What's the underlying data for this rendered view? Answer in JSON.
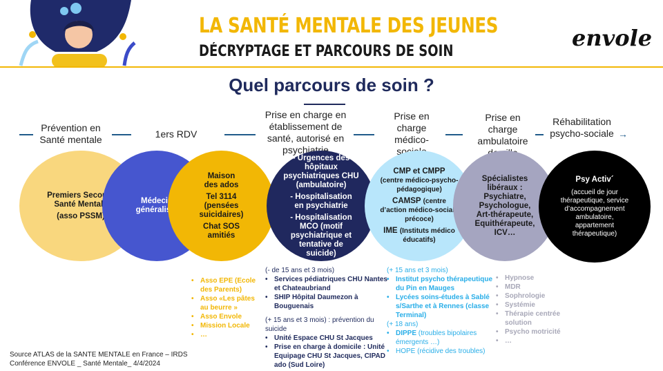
{
  "header": {
    "title": "LA SANTÉ MENTALE DES JEUNES",
    "subtitle": "DÉCRYPTAGE ET PARCOURS DE SOIN",
    "logo_text": "envole"
  },
  "heading": "Quel parcours de soin ?",
  "steps": [
    "Prévention en Santé mentale",
    "1ers RDV",
    "Prise en charge en établissement de santé, autorisé en psychiatrie",
    "Prise en charge médico-sociale",
    "Prise en charge ambulatoire de ville",
    "Réhabilitation psycho-sociale"
  ],
  "circles": {
    "c1": [
      "Premiers Secours Santé Mentale",
      "(asso PSSM)"
    ],
    "c2": [
      "Médecin généraliste"
    ],
    "c3": [
      "Maison des ados",
      "Tel 3114 (pensées suicidaires)",
      "Chat SOS amitiés"
    ],
    "c4": [
      "- Urgences des hôpitaux psychiatriques CHU (ambulatoire)",
      "- Hospitalisation en psychiatrie",
      "- Hospitalisation MCO  (motif psychiatrique et tentative de suicide)"
    ],
    "c5": {
      "a": "CMP et CMPP",
      "a2": "(centre médico-psycho-pédagogique)",
      "b": "CAMSP",
      "b2": "(centre d’action médico-sociale précoce)",
      "c": "IME",
      "c2": "(Instituts médico éducatifs)"
    },
    "c6": [
      "Spécialistes libéraux : Psychiatre, Psychologue, Art-thérapeute, Equithérapeute, ICV…"
    ],
    "c7": {
      "title": "Psy Activ´",
      "desc": "(accueil de jour thérapeutique, service d’accompagnement ambulatoire, appartement thérapeutique)"
    }
  },
  "lists": {
    "prevention": [
      "Asso EPE (Ecole des Parents)",
      "Asso «Les pâtes au beurre »",
      "Asso Envole",
      "Mission Locale",
      "…"
    ],
    "etab": {
      "h1": "(- de 15 ans et 3 mois)",
      "i1": [
        "Services pédiatriques CHU Nantes et Chateaubriand",
        "SHIP Hôpital Daumezon à Bouguenais"
      ],
      "h2": "(+ 15 ans et 3 mois) : prévention du suicide",
      "i2": [
        "Unité Espace CHU St Jacques",
        "Prise en charge à domicile : Unité Equipage CHU St Jacques, CIPAD ado (Sud Loire)"
      ]
    },
    "medsoc": {
      "h1": "(+ 15 ans et 3 mois)",
      "i1": [
        "Institut psycho thérapeutique du Pin en Mauges",
        "Lycées soins-études à Sablé s/Sarthe et à Rennes (classe Terminal)"
      ],
      "h2": "(+ 18 ans)",
      "i2a": "DIPPE",
      "i2a2": " (troubles bipolaires émergents …)",
      "i2b": "HOPE (récidive des troubles)"
    },
    "ville": [
      "Hypnose",
      "MDR",
      "Sophrologie",
      "Systémie",
      "Thérapie centrée solution",
      "Psycho motricité",
      "…"
    ]
  },
  "source": [
    "Source ATLAS de la SANTE MENTALE en France – IRDS",
    "Conférence ENVOLE _ Santé Mentale_ 4/4/2024"
  ],
  "colors": {
    "yellow": "#f2b705",
    "navy": "#1f2a5c",
    "lightblue": "#29aee8",
    "gray": "#a3a3be"
  }
}
